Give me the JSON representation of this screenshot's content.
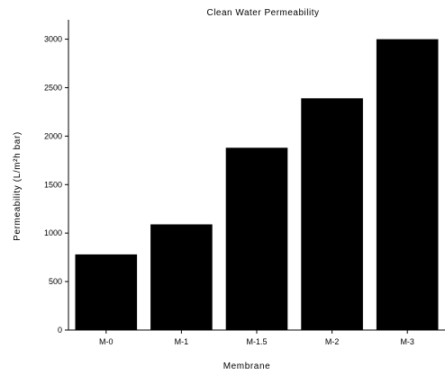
{
  "chart_data": {
    "type": "bar",
    "title": "Clean Water Permeability",
    "xlabel": "Membrane",
    "ylabel": "Permeability (L/m²h bar)",
    "categories": [
      "M-0",
      "M-1",
      "M-1.5",
      "M-2",
      "M-3"
    ],
    "values": [
      780,
      1090,
      1880,
      2390,
      3000
    ],
    "ylim": [
      0,
      3200
    ],
    "yticks": [
      0,
      500,
      1000,
      1500,
      2000,
      2500,
      3000
    ],
    "bar_color": "#000000",
    "grid": false,
    "legend": "none"
  }
}
